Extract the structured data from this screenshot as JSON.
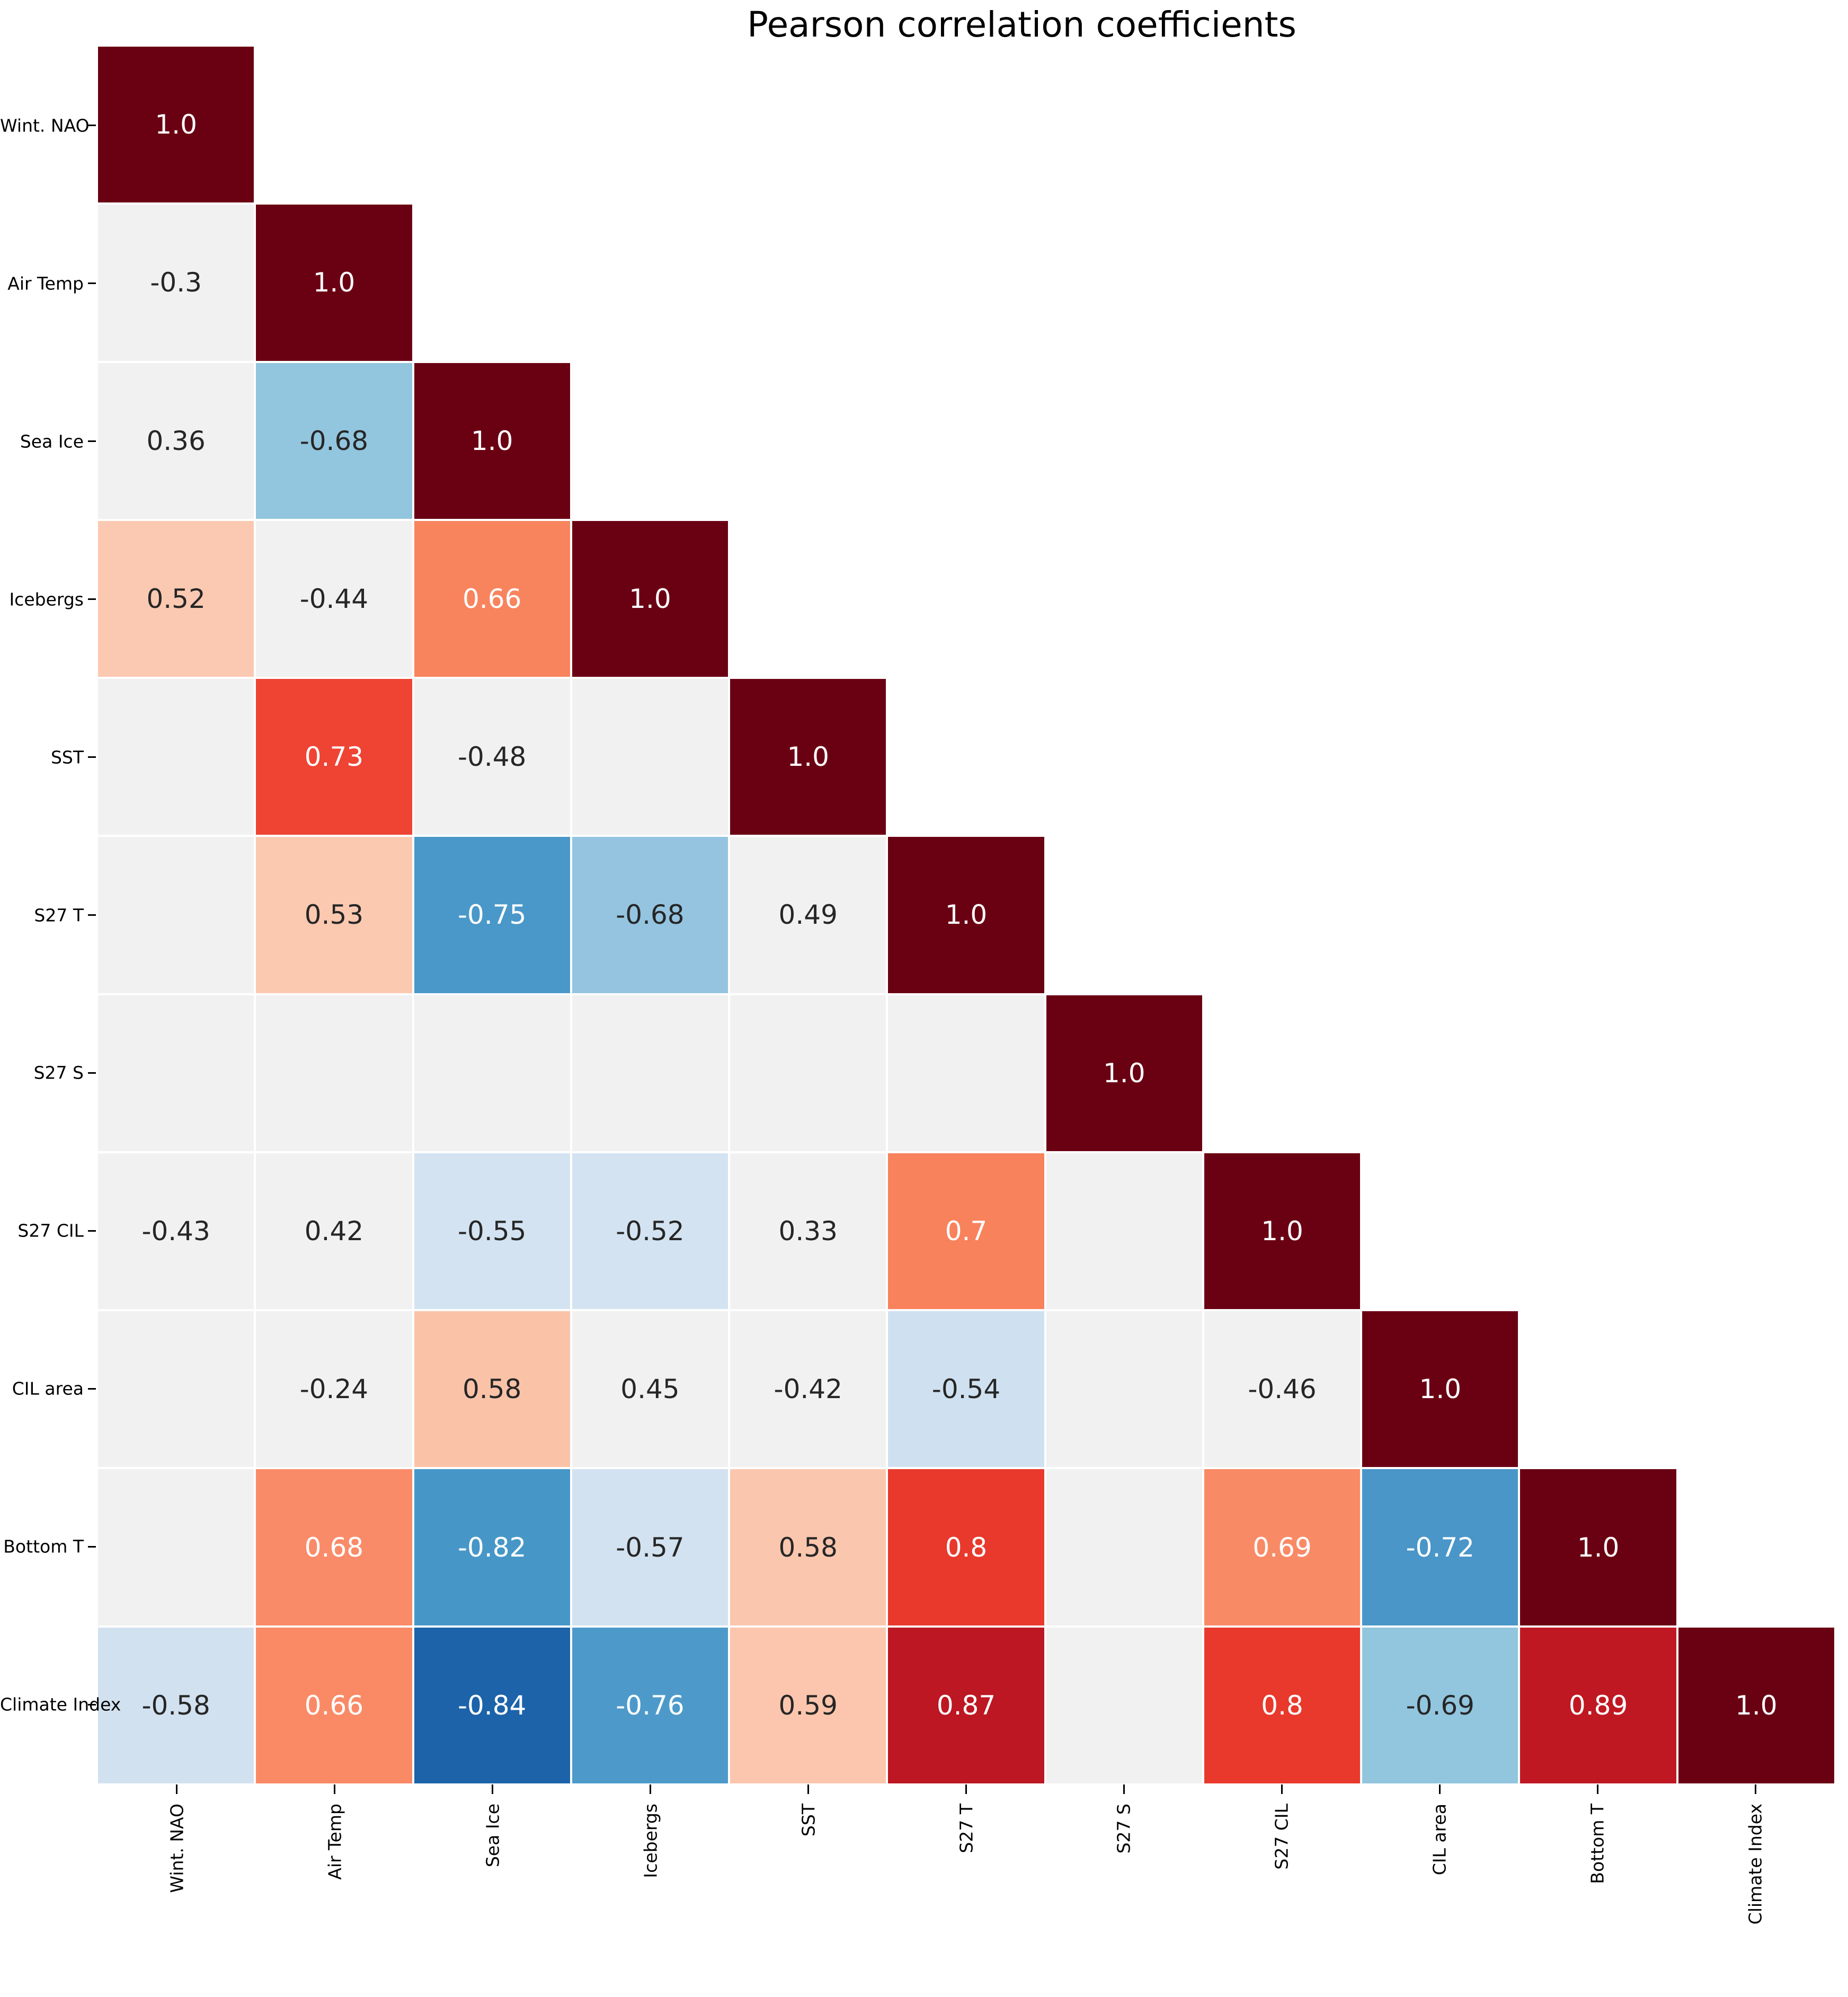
{
  "title": "Pearson correlation coefficients",
  "colors": {
    "diagonal": "#6a0113",
    "insignificant_bg": "#f1f1f1",
    "dark_text": "#262626",
    "light_text": "#ffffff",
    "axis_text": "#000000",
    "gridline": "#ffffff"
  },
  "chart_data": {
    "type": "heatmap",
    "title": "Pearson correlation coefficients",
    "shape": "lower-triangle",
    "colormap": "RdBu_r",
    "value_range": [
      -1,
      1
    ],
    "grid": true,
    "categories": [
      "Wint. NAO",
      "Air Temp",
      "Sea Ice",
      "Icebergs",
      "SST",
      "S27 T",
      "S27 S",
      "S27 CIL",
      "CIL area",
      "Bottom T",
      "Climate Index"
    ],
    "rows": [
      {
        "label": "Wint. NAO",
        "cells": [
          {
            "label": "1.0",
            "value": 1.0,
            "bg": "#6a0113",
            "fg": "#ffffff"
          }
        ]
      },
      {
        "label": "Air Temp",
        "cells": [
          {
            "label": "-0.3",
            "value": -0.3,
            "bg": "#f1f1f1",
            "fg": "#262626"
          },
          {
            "label": "1.0",
            "value": 1.0,
            "bg": "#6a0113",
            "fg": "#ffffff"
          }
        ]
      },
      {
        "label": "Sea Ice",
        "cells": [
          {
            "label": "0.36",
            "value": 0.36,
            "bg": "#f1f1f1",
            "fg": "#262626"
          },
          {
            "label": "-0.68",
            "value": -0.68,
            "bg": "#92c5de",
            "fg": "#262626"
          },
          {
            "label": "1.0",
            "value": 1.0,
            "bg": "#6a0113",
            "fg": "#ffffff"
          }
        ]
      },
      {
        "label": "Icebergs",
        "cells": [
          {
            "label": "0.52",
            "value": 0.52,
            "bg": "#fbc9b1",
            "fg": "#262626"
          },
          {
            "label": "-0.44",
            "value": -0.44,
            "bg": "#f1f1f1",
            "fg": "#262626"
          },
          {
            "label": "0.66",
            "value": 0.66,
            "bg": "#f8845e",
            "fg": "#ffffff"
          },
          {
            "label": "1.0",
            "value": 1.0,
            "bg": "#6a0113",
            "fg": "#ffffff"
          }
        ]
      },
      {
        "label": "SST",
        "cells": [
          {
            "label": "",
            "value": null,
            "bg": "#f1f1f1",
            "fg": "#262626"
          },
          {
            "label": "0.73",
            "value": 0.73,
            "bg": "#ef4333",
            "fg": "#ffffff"
          },
          {
            "label": "-0.48",
            "value": -0.48,
            "bg": "#f1f1f1",
            "fg": "#262626"
          },
          {
            "label": "",
            "value": null,
            "bg": "#f1f1f1",
            "fg": "#262626"
          },
          {
            "label": "1.0",
            "value": 1.0,
            "bg": "#6a0113",
            "fg": "#ffffff"
          }
        ]
      },
      {
        "label": "S27 T",
        "cells": [
          {
            "label": "",
            "value": null,
            "bg": "#f1f1f1",
            "fg": "#262626"
          },
          {
            "label": "0.53",
            "value": 0.53,
            "bg": "#fbc8b0",
            "fg": "#262626"
          },
          {
            "label": "-0.75",
            "value": -0.75,
            "bg": "#4a98c9",
            "fg": "#ffffff"
          },
          {
            "label": "-0.68",
            "value": -0.68,
            "bg": "#94c4e0",
            "fg": "#262626"
          },
          {
            "label": "0.49",
            "value": 0.49,
            "bg": "#f1f1f1",
            "fg": "#262626"
          },
          {
            "label": "1.0",
            "value": 1.0,
            "bg": "#6a0113",
            "fg": "#ffffff"
          }
        ]
      },
      {
        "label": "S27 S",
        "cells": [
          {
            "label": "",
            "value": null,
            "bg": "#f1f1f1",
            "fg": "#262626"
          },
          {
            "label": "",
            "value": null,
            "bg": "#f1f1f1",
            "fg": "#262626"
          },
          {
            "label": "",
            "value": null,
            "bg": "#f1f1f1",
            "fg": "#262626"
          },
          {
            "label": "",
            "value": null,
            "bg": "#f1f1f1",
            "fg": "#262626"
          },
          {
            "label": "",
            "value": null,
            "bg": "#f1f1f1",
            "fg": "#262626"
          },
          {
            "label": "",
            "value": null,
            "bg": "#f1f1f1",
            "fg": "#262626"
          },
          {
            "label": "1.0",
            "value": 1.0,
            "bg": "#6a0113",
            "fg": "#ffffff"
          }
        ]
      },
      {
        "label": "S27 CIL",
        "cells": [
          {
            "label": "-0.43",
            "value": -0.43,
            "bg": "#f1f1f1",
            "fg": "#262626"
          },
          {
            "label": "0.42",
            "value": 0.42,
            "bg": "#f1f1f1",
            "fg": "#262626"
          },
          {
            "label": "-0.55",
            "value": -0.55,
            "bg": "#d3e3f1",
            "fg": "#262626"
          },
          {
            "label": "-0.52",
            "value": -0.52,
            "bg": "#d3e3f1",
            "fg": "#262626"
          },
          {
            "label": "0.33",
            "value": 0.33,
            "bg": "#f1f1f1",
            "fg": "#262626"
          },
          {
            "label": "0.7",
            "value": 0.7,
            "bg": "#f8825c",
            "fg": "#ffffff"
          },
          {
            "label": "",
            "value": null,
            "bg": "#f1f1f1",
            "fg": "#262626"
          },
          {
            "label": "1.0",
            "value": 1.0,
            "bg": "#6a0113",
            "fg": "#ffffff"
          }
        ]
      },
      {
        "label": "CIL area",
        "cells": [
          {
            "label": "",
            "value": null,
            "bg": "#f1f1f1",
            "fg": "#262626"
          },
          {
            "label": "-0.24",
            "value": -0.24,
            "bg": "#f1f1f1",
            "fg": "#262626"
          },
          {
            "label": "0.58",
            "value": 0.58,
            "bg": "#fac3a8",
            "fg": "#262626"
          },
          {
            "label": "0.45",
            "value": 0.45,
            "bg": "#f1f1f1",
            "fg": "#262626"
          },
          {
            "label": "-0.42",
            "value": -0.42,
            "bg": "#f1f1f1",
            "fg": "#262626"
          },
          {
            "label": "-0.54",
            "value": -0.54,
            "bg": "#cfe1f0",
            "fg": "#262626"
          },
          {
            "label": "",
            "value": null,
            "bg": "#f1f1f1",
            "fg": "#262626"
          },
          {
            "label": "-0.46",
            "value": -0.46,
            "bg": "#f1f1f1",
            "fg": "#262626"
          },
          {
            "label": "1.0",
            "value": 1.0,
            "bg": "#6a0113",
            "fg": "#ffffff"
          }
        ]
      },
      {
        "label": "Bottom T",
        "cells": [
          {
            "label": "",
            "value": null,
            "bg": "#f1f1f1",
            "fg": "#262626"
          },
          {
            "label": "0.68",
            "value": 0.68,
            "bg": "#fa8b68",
            "fg": "#ffffff"
          },
          {
            "label": "-0.82",
            "value": -0.82,
            "bg": "#4697c8",
            "fg": "#ffffff"
          },
          {
            "label": "-0.57",
            "value": -0.57,
            "bg": "#d2e2f0",
            "fg": "#262626"
          },
          {
            "label": "0.58",
            "value": 0.58,
            "bg": "#fbc6ae",
            "fg": "#262626"
          },
          {
            "label": "0.8",
            "value": 0.8,
            "bg": "#e8392c",
            "fg": "#ffffff"
          },
          {
            "label": "",
            "value": null,
            "bg": "#f1f1f1",
            "fg": "#262626"
          },
          {
            "label": "0.69",
            "value": 0.69,
            "bg": "#f98a66",
            "fg": "#ffffff"
          },
          {
            "label": "-0.72",
            "value": -0.72,
            "bg": "#4a96c8",
            "fg": "#ffffff"
          },
          {
            "label": "1.0",
            "value": 1.0,
            "bg": "#6a0113",
            "fg": "#ffffff"
          }
        ]
      },
      {
        "label": "Climate Index",
        "cells": [
          {
            "label": "-0.58",
            "value": -0.58,
            "bg": "#d2e1ef",
            "fg": "#262626"
          },
          {
            "label": "0.66",
            "value": 0.66,
            "bg": "#fa8a66",
            "fg": "#ffffff"
          },
          {
            "label": "-0.84",
            "value": -0.84,
            "bg": "#1c63a9",
            "fg": "#ffffff"
          },
          {
            "label": "-0.76",
            "value": -0.76,
            "bg": "#4d9aca",
            "fg": "#ffffff"
          },
          {
            "label": "0.59",
            "value": 0.59,
            "bg": "#fbc6ad",
            "fg": "#262626"
          },
          {
            "label": "0.87",
            "value": 0.87,
            "bg": "#bc1722",
            "fg": "#ffffff"
          },
          {
            "label": "",
            "value": null,
            "bg": "#f1f1f1",
            "fg": "#262626"
          },
          {
            "label": "0.8",
            "value": 0.8,
            "bg": "#e8392c",
            "fg": "#ffffff"
          },
          {
            "label": "-0.69",
            "value": -0.69,
            "bg": "#92c5de",
            "fg": "#262626"
          },
          {
            "label": "0.89",
            "value": 0.89,
            "bg": "#c01823",
            "fg": "#ffffff"
          },
          {
            "label": "1.0",
            "value": 1.0,
            "bg": "#6a0113",
            "fg": "#ffffff"
          }
        ]
      }
    ]
  }
}
